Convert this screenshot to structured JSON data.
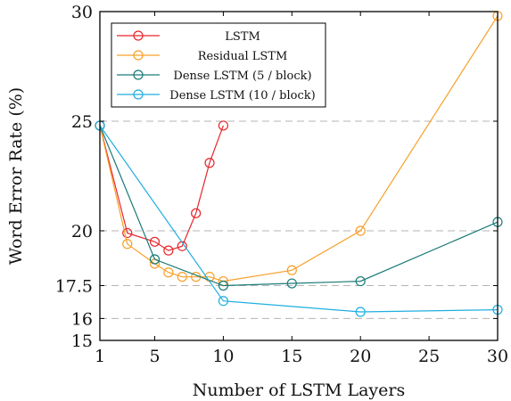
{
  "chart_data": {
    "type": "line",
    "title": "",
    "xlabel": "Number of LSTM Layers",
    "ylabel": "Word Error Rate (%)",
    "xlim": [
      1,
      30
    ],
    "ylim": [
      15,
      30
    ],
    "xticks": [
      1,
      5,
      10,
      15,
      20,
      25,
      30
    ],
    "yticks": [
      15,
      16,
      17.5,
      20,
      25,
      30
    ],
    "ytick_labels": [
      "15",
      "16",
      "17.5",
      "20",
      "25",
      "30"
    ],
    "dashed_gridlines_y": [
      16,
      17.5,
      20,
      25
    ],
    "legend_position": "top-left",
    "series": [
      {
        "name": "LSTM",
        "color": "#e8262b",
        "x": [
          1,
          3,
          5,
          6,
          7,
          8,
          9,
          10
        ],
        "y": [
          24.8,
          19.9,
          19.5,
          19.1,
          19.3,
          20.8,
          23.1,
          24.8
        ]
      },
      {
        "name": "Residual LSTM",
        "color": "#f7a029",
        "x": [
          1,
          3,
          5,
          6,
          7,
          8,
          9,
          10,
          15,
          20,
          30
        ],
        "y": [
          24.8,
          19.4,
          18.5,
          18.1,
          17.9,
          17.9,
          17.9,
          17.7,
          18.2,
          20.0,
          29.8
        ]
      },
      {
        "name": "Dense LSTM (5 / block)",
        "color": "#1a7a78",
        "x": [
          1,
          5,
          10,
          15,
          20,
          30
        ],
        "y": [
          24.8,
          18.7,
          17.5,
          17.6,
          17.7,
          20.4
        ]
      },
      {
        "name": "Dense LSTM (10 / block)",
        "color": "#1faee0",
        "x": [
          1,
          10,
          20,
          30
        ],
        "y": [
          24.8,
          16.8,
          16.3,
          16.4
        ]
      }
    ]
  }
}
